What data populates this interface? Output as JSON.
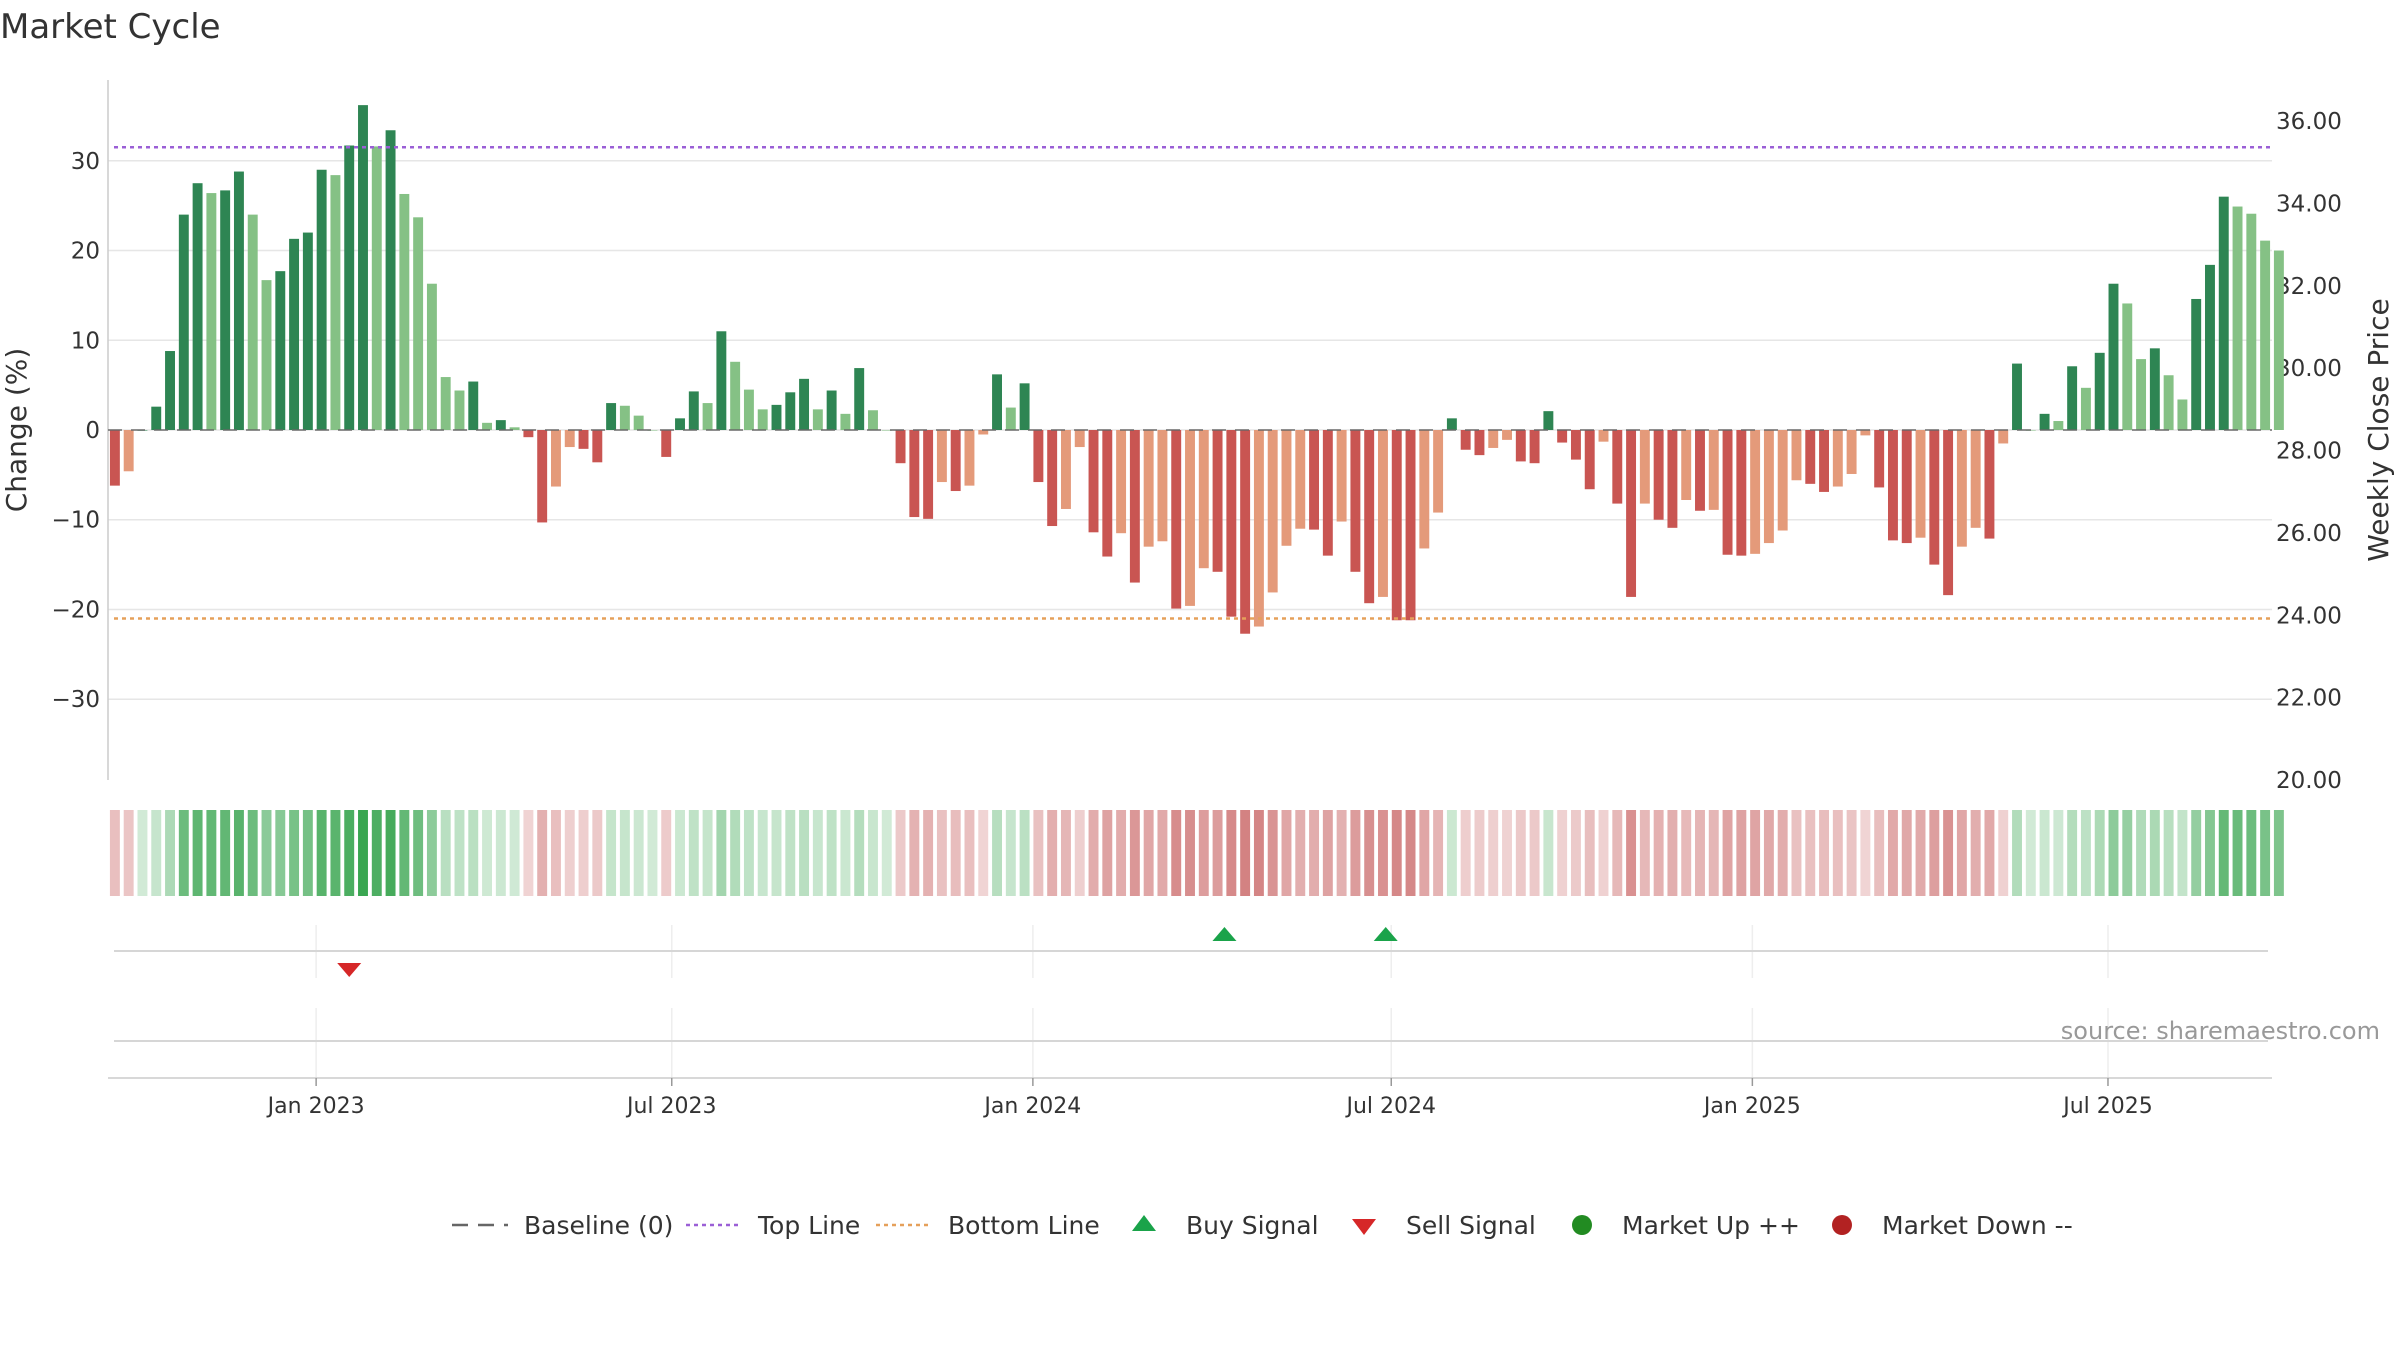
{
  "chart_data": {
    "type": "bar",
    "title": "Market Cycle",
    "ylabel_left": "Change (%)",
    "ylabel_right": "Weekly Close Price",
    "left_axis": {
      "ylim": [
        -39,
        39
      ],
      "ticks": [
        30,
        20,
        10,
        0,
        -10,
        -20,
        -30
      ],
      "tick_labels": [
        "30",
        "20",
        "10",
        "0",
        "−10",
        "−20",
        "−30"
      ]
    },
    "right_axis": {
      "ylim": [
        20,
        37
      ],
      "ticks": [
        36,
        34,
        32,
        30,
        28,
        26,
        24,
        22,
        20
      ],
      "tick_labels": [
        "36.00",
        "34.00",
        "32.00",
        "30.00",
        "28.00",
        "26.00",
        "24.00",
        "22.00",
        "20.00"
      ]
    },
    "x_range": [
      -0.5,
      156.5
    ],
    "x_ticks": [
      {
        "label": "Jan 2023",
        "index": 14.6
      },
      {
        "label": "Jul 2023",
        "index": 40.4
      },
      {
        "label": "Jan 2024",
        "index": 66.6
      },
      {
        "label": "Jul 2024",
        "index": 92.6
      },
      {
        "label": "Jan 2025",
        "index": 118.8
      },
      {
        "label": "Jul 2025",
        "index": 144.6
      }
    ],
    "top_line": 31.5,
    "bottom_line": -21.0,
    "grid": true,
    "values": [
      -6.2,
      -4.6,
      0,
      2.6,
      8.8,
      24,
      27.5,
      26.4,
      26.7,
      28.8,
      24,
      16.7,
      17.7,
      21.3,
      22,
      29,
      28.4,
      31.7,
      36.2,
      31.6,
      33.4,
      26.3,
      23.7,
      16.3,
      5.9,
      4.4,
      5.4,
      0.8,
      1.1,
      0.3,
      -0.8,
      -10.3,
      -6.3,
      -1.9,
      -2.1,
      -3.6,
      3.0,
      2.7,
      1.6,
      0,
      -3.0,
      1.3,
      4.3,
      3.0,
      11.0,
      7.6,
      4.5,
      2.3,
      2.8,
      4.2,
      5.7,
      2.3,
      4.4,
      1.8,
      6.9,
      2.2,
      0,
      -3.7,
      -9.7,
      -9.9,
      -5.8,
      -6.8,
      -6.2,
      -0.5,
      6.2,
      2.5,
      5.2,
      -5.8,
      -10.7,
      -8.8,
      -1.9,
      -11.4,
      -14.1,
      -11.5,
      -17.0,
      -13.0,
      -12.4,
      -19.9,
      -19.6,
      -15.4,
      -15.8,
      -20.8,
      -22.7,
      -21.9,
      -18.1,
      -12.9,
      -11.0,
      -11.1,
      -14.0,
      -10.2,
      -15.8,
      -19.3,
      -18.6,
      -21.2,
      -21.2,
      -13.2,
      -9.2,
      1.3,
      -2.2,
      -2.8,
      -2.0,
      -1.1,
      -3.5,
      -3.7,
      2.1,
      -1.4,
      -3.3,
      -6.6,
      -1.3,
      -8.2,
      -18.6,
      -8.2,
      -10.0,
      -10.9,
      -7.8,
      -9.0,
      -8.9,
      -13.9,
      -14.0,
      -13.8,
      -12.6,
      -11.2,
      -5.6,
      -6.0,
      -6.9,
      -6.3,
      -4.9,
      -0.6,
      -6.4,
      -12.3,
      -12.6,
      -12.0,
      -15.0,
      -18.4,
      -13.0,
      -10.9,
      -12.1,
      -1.5,
      7.4,
      0,
      1.8,
      1.0,
      7.1,
      4.7,
      8.6,
      16.3,
      14.1,
      7.9,
      9.1,
      6.1,
      3.4,
      14.6,
      18.4,
      26.0,
      24.9,
      24.1,
      21.1,
      20.0
    ],
    "signals": [
      {
        "type": "sell",
        "index": 17
      },
      {
        "type": "buy",
        "index": 80.5
      },
      {
        "type": "buy",
        "index": 92.2
      }
    ],
    "colors": {
      "strong_up": "#2e8553",
      "weak_up": "#85c185",
      "strong_down": "#c95552",
      "weak_down": "#e49a7a",
      "top_line": "#9b5fd6",
      "bottom_line": "#e5a05a",
      "baseline": "#666666",
      "buy": "#1aa34a",
      "sell": "#d62728",
      "market_up": "#228b22",
      "market_down": "#b22222"
    },
    "legend": {
      "placement": "bottom-center",
      "items": [
        {
          "label": "Baseline (0)",
          "marker": "dash-line"
        },
        {
          "label": "Top Line",
          "marker": "dot-line-purple"
        },
        {
          "label": "Bottom Line",
          "marker": "dot-line-orange"
        },
        {
          "label": "Buy Signal",
          "marker": "triangle-up"
        },
        {
          "label": "Sell Signal",
          "marker": "triangle-down"
        },
        {
          "label": "Market Up ++",
          "marker": "circle-green"
        },
        {
          "label": "Market Down --",
          "marker": "circle-red"
        }
      ]
    },
    "source": "source: sharemaestro.com"
  }
}
